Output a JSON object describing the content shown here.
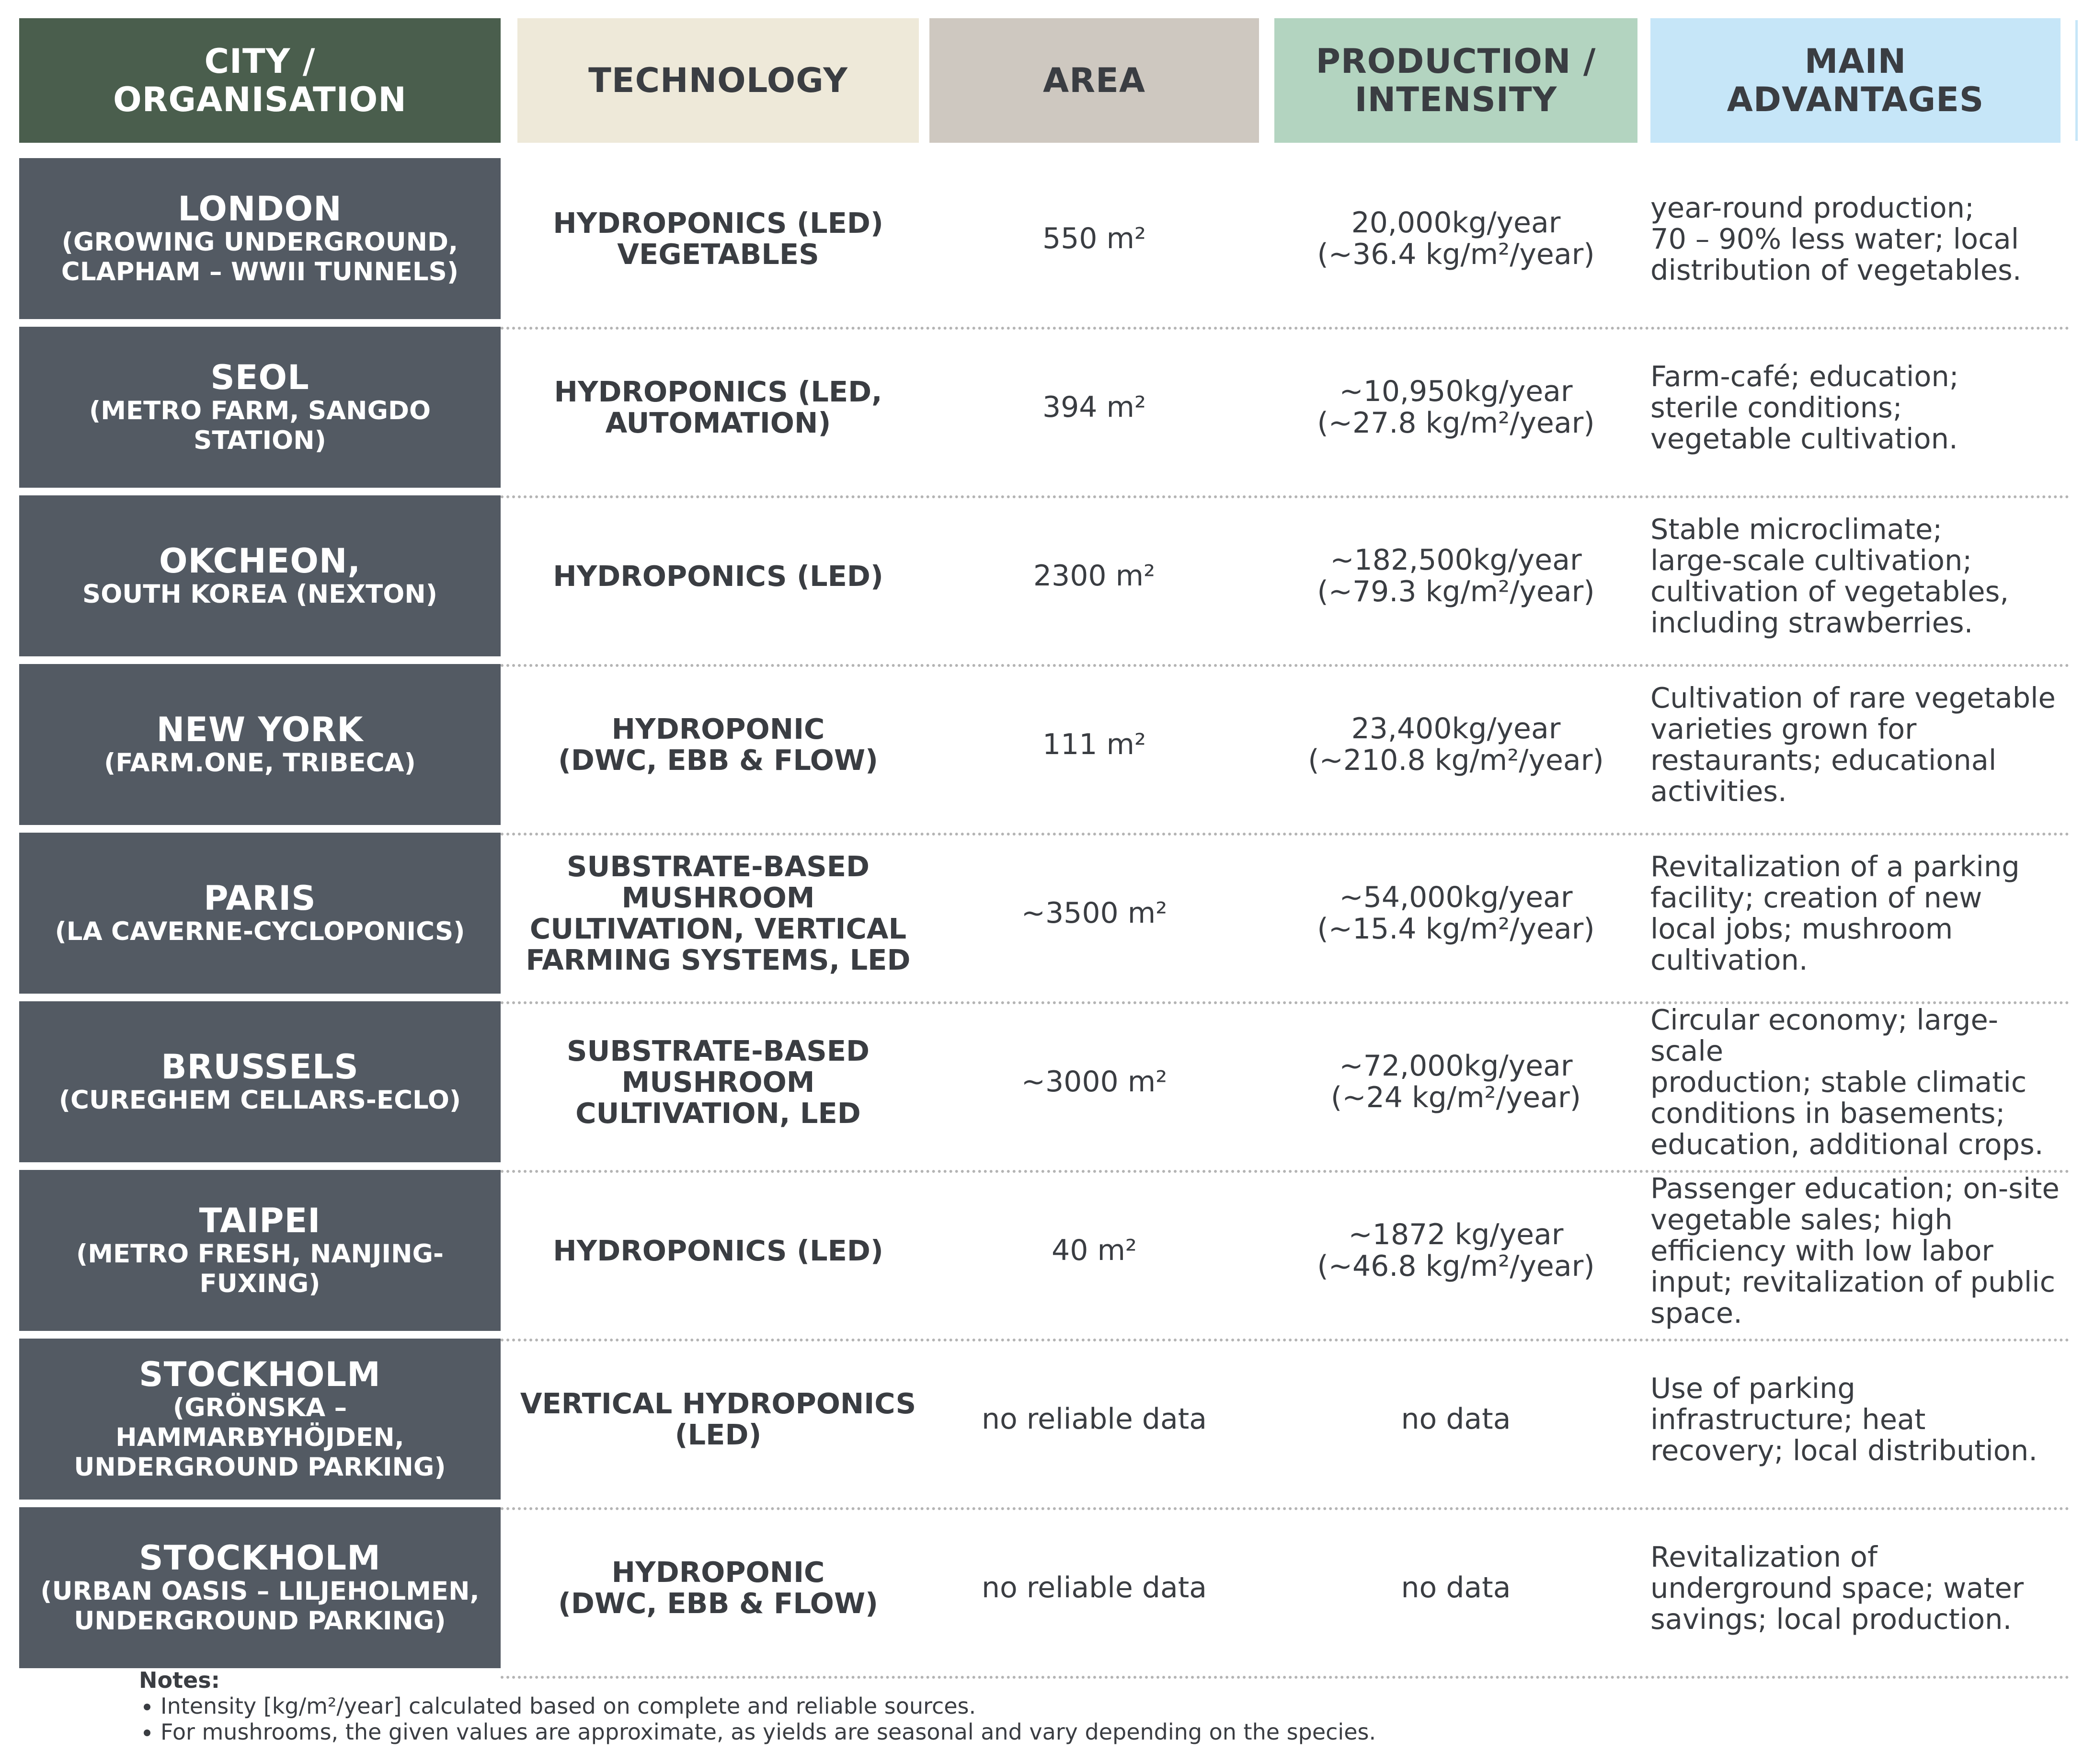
{
  "headers": {
    "city": "CITY /\nORGANISATION",
    "technology": "TECHNOLOGY",
    "area": "AREA",
    "production": "PRODUCTION /\nINTENSITY",
    "advantages": "MAIN\nADVANTAGES"
  },
  "rows": [
    {
      "city": "LONDON",
      "sub": "(GROWING UNDERGROUND,\nCLAPHAM – WWII TUNNELS)",
      "tech": "HYDROPONICS (LED)\nVEGETABLES",
      "area": "550 m²",
      "prod": "20,000kg/year\n(~36.4 kg/m²/year)",
      "adv": "year-round production;\n 70 – 90% less water; local\ndistribution of vegetables."
    },
    {
      "city": "SEOL",
      "sub": "(METRO FARM, SANGDO\nSTATION)",
      "tech": "HYDROPONICS (LED,\nAUTOMATION)",
      "area": "394 m²",
      "prod": "~10,950kg/year\n(~27.8 kg/m²/year)",
      "adv": "Farm-café; education;\n sterile conditions;\nvegetable cultivation."
    },
    {
      "city": "OKCHEON,",
      "sub": "SOUTH KOREA (NEXTON)",
      "tech": "HYDROPONICS (LED)",
      "area": "2300 m²",
      "prod": "~182,500kg/year\n(~79.3 kg/m²/year)",
      "adv": "Stable microclimate;\n large-scale cultivation;\ncultivation of vegetables,\nincluding strawberries."
    },
    {
      "city": "NEW YORK",
      "sub": "(FARM.ONE, TRIBECA)",
      "tech": "HYDROPONIC\n(DWC, EBB & FLOW)",
      "area": "111 m²",
      "prod": "23,400kg/year\n(~210.8 kg/m²/year)",
      "adv": "Cultivation of rare vegetable\nvarieties grown for\nrestaurants; educational\nactivities."
    },
    {
      "city": "PARIS",
      "sub": "(LA CAVERNE-CYCLOPONICS)",
      "tech": "SUBSTRATE-BASED\nMUSHROOM\nCULTIVATION, VERTICAL\nFARMING SYSTEMS, LED",
      "area": "~3500 m²",
      "prod": "~54,000kg/year\n(~15.4 kg/m²/year)",
      "adv": "Revitalization of a parking\nfacility;  creation of new\nlocal jobs; mushroom\ncultivation."
    },
    {
      "city": "BRUSSELS",
      "sub": "(CUREGHEM CELLARS-ECLO)",
      "tech": "SUBSTRATE-BASED\nMUSHROOM\nCULTIVATION, LED",
      "area": "~3000 m²",
      "prod": "~72,000kg/year\n(~24 kg/m²/year)",
      "adv": "Circular economy; large-scale\nproduction; stable climatic\nconditions in basements;\neducation, additional crops."
    },
    {
      "city": "TAIPEI",
      "sub": "(METRO FRESH, NANJING-\nFUXING)",
      "tech": "HYDROPONICS (LED)",
      "area": "40 m²",
      "prod": "~1872 kg/year\n(~46.8 kg/m²/year)",
      "adv": "Passenger education; on-site\nvegetable sales;  high\nefficiency with low labor\ninput; revitalization of public\nspace."
    },
    {
      "city": "STOCKHOLM",
      "sub": "(GRÖNSKA –\nHAMMARBYHÖJDEN,\nUNDERGROUND PARKING)",
      "tech": "VERTICAL HYDROPONICS\n(LED)",
      "area": "no reliable data",
      "prod": "no data",
      "adv": "Use of parking\ninfrastructure; heat\nrecovery; local distribution."
    },
    {
      "city": "STOCKHOLM",
      "sub": "(URBAN OASIS – LILJEHOLMEN,\nUNDERGROUND PARKING)",
      "tech": "HYDROPONIC\n(DWC, EBB & FLOW)",
      "area": "no reliable data",
      "prod": "no data",
      "adv": "Revitalization of\nunderground space; water\nsavings; local production."
    }
  ],
  "notes": {
    "title": "Notes:",
    "items": [
      "Intensity [kg/m²/year] calculated based on complete and reliable sources.",
      "For mushrooms, the given values are approximate, as yields are seasonal and vary depending on the species."
    ]
  },
  "colors": {
    "city_header": "#4a5e4d",
    "tech_header": "#eee9d9",
    "area_header": "#cec8c0",
    "production_header": "#b3d4c0",
    "advantages_header": "#c6e6f8",
    "city_cell": "#535a63"
  }
}
